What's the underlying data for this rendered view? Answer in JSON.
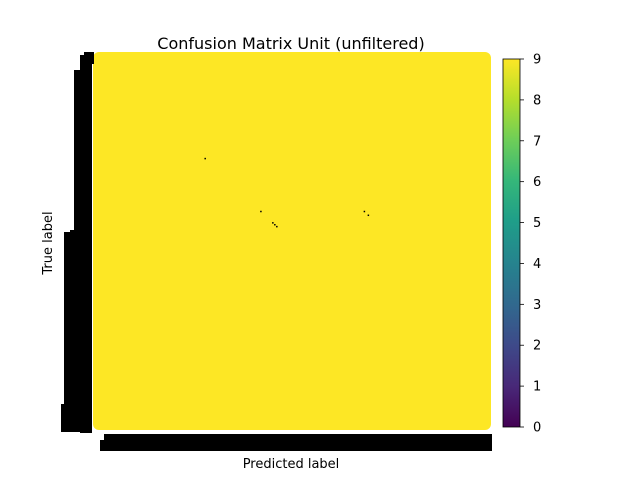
{
  "chart_data": {
    "type": "heatmap",
    "title": "Confusion Matrix Unit (unfiltered)",
    "xlabel": "Predicted label",
    "ylabel": "True label",
    "colormap": "viridis",
    "colorbar": {
      "min": 0,
      "max": 9,
      "ticks": [
        0,
        1,
        2,
        3,
        4,
        5,
        6,
        7,
        8,
        9
      ]
    },
    "fill_value": 9,
    "dominant_cell_color": "#fde725",
    "low_cells": [
      {
        "row": 0.28,
        "col": 0.28,
        "value": 0
      },
      {
        "row": 0.42,
        "col": 0.42,
        "value": 0
      },
      {
        "row": 0.42,
        "col": 0.68,
        "value": 0
      },
      {
        "row": 0.43,
        "col": 0.69,
        "value": 0
      },
      {
        "row": 0.45,
        "col": 0.45,
        "value": 0
      },
      {
        "row": 0.455,
        "col": 0.455,
        "value": 0
      },
      {
        "row": 0.46,
        "col": 0.46,
        "value": 0
      }
    ],
    "tick_labels_overlapping": true
  }
}
